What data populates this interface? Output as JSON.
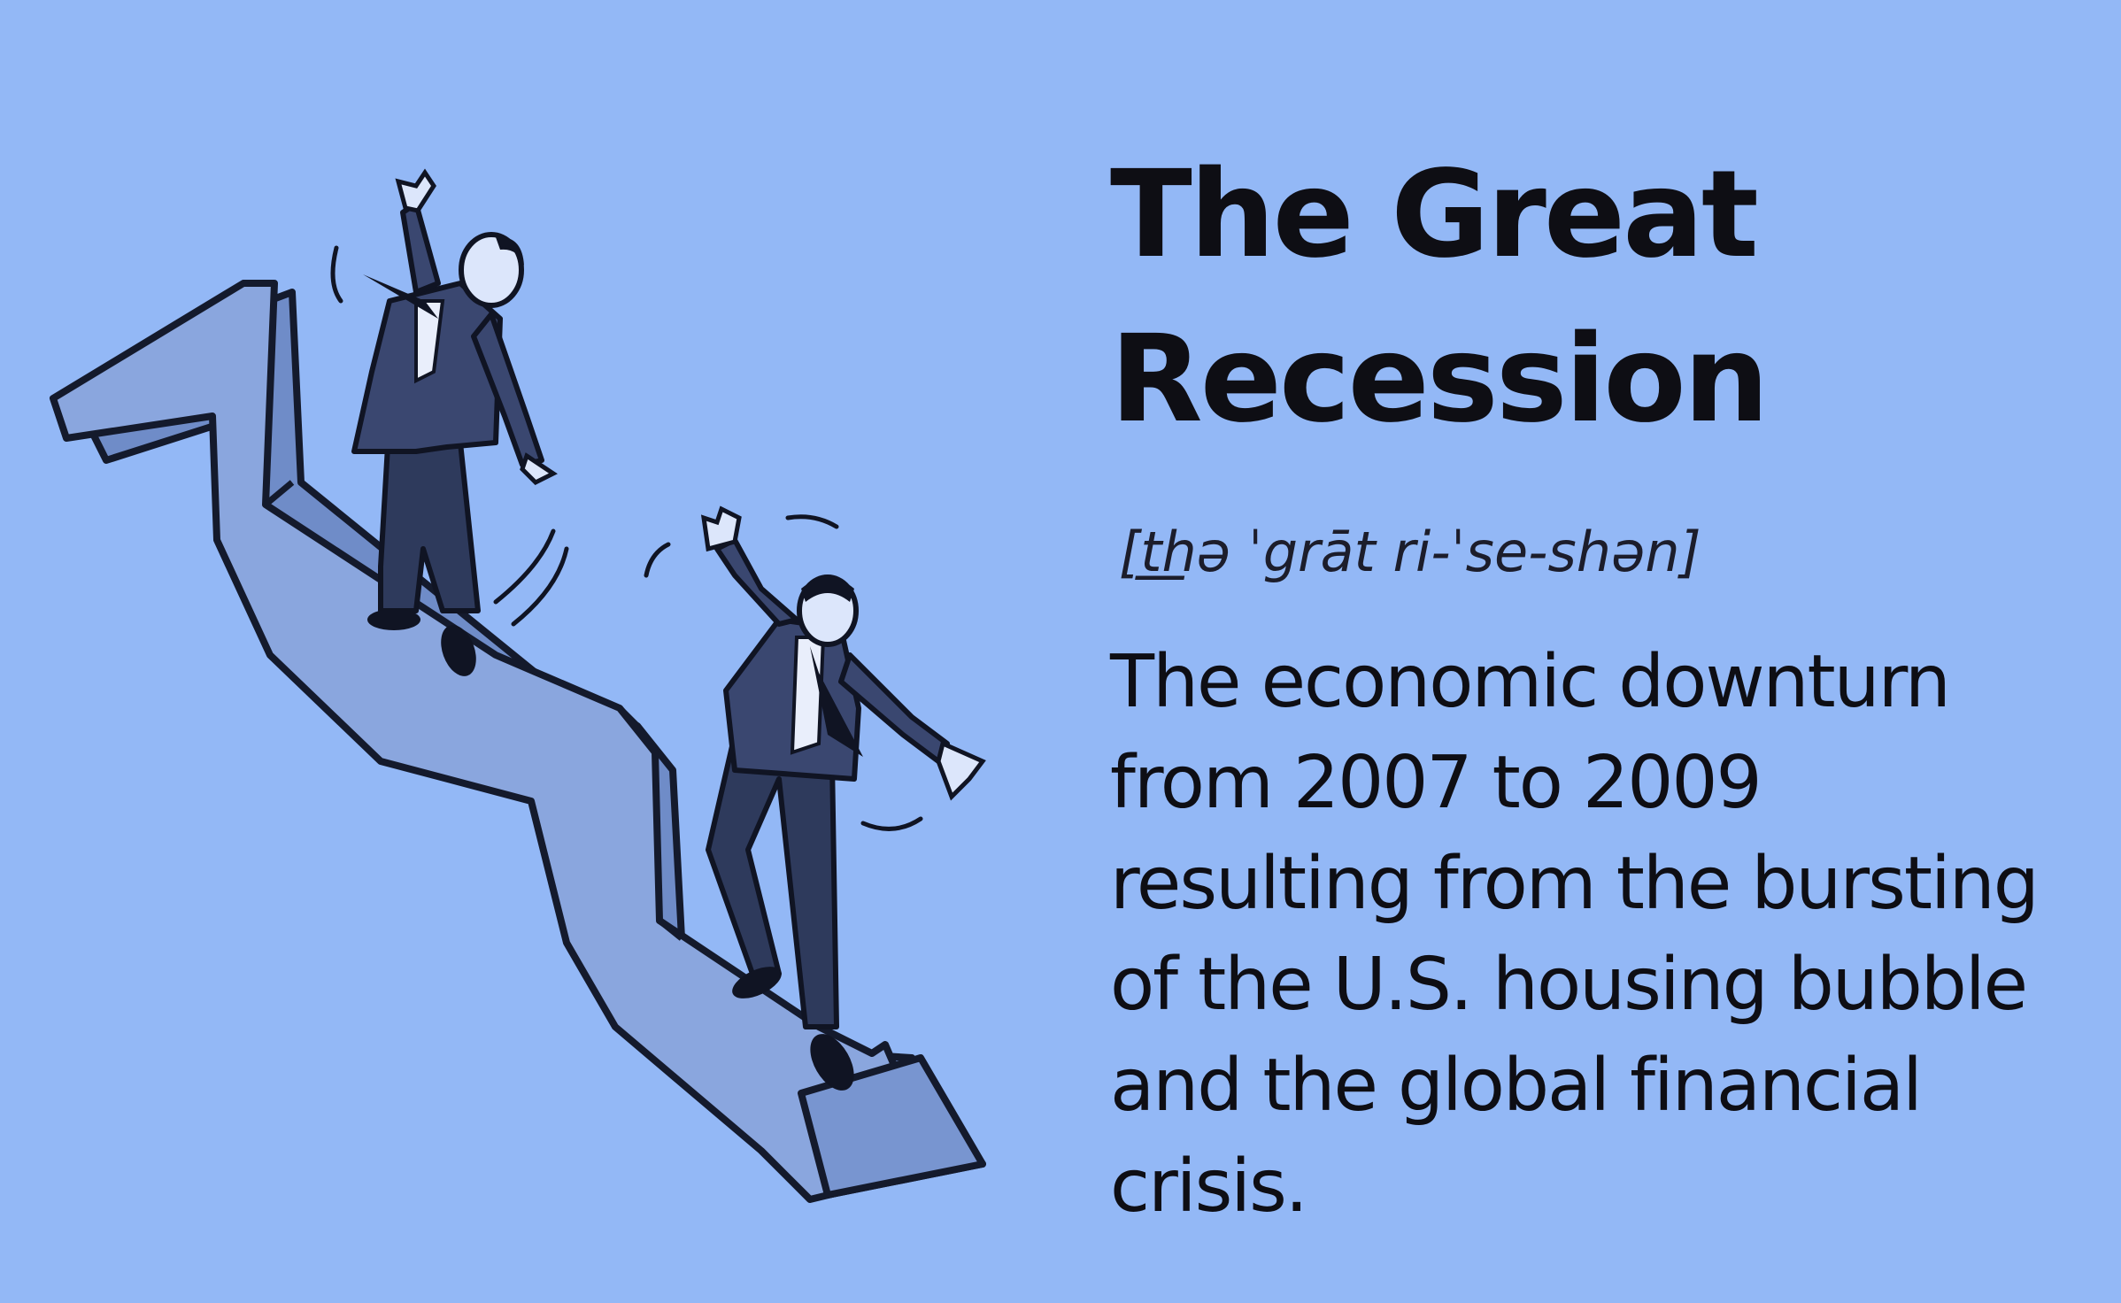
{
  "background_color": "#93b8f6",
  "title": {
    "line1": "The Great",
    "line2": "Recession"
  },
  "pronunciation": "[t͟hə ˈgrāt ri-ˈse-shən]",
  "definition": {
    "lines": [
      "The economic downturn",
      "from 2007 to 2009",
      "resulting from the bursting",
      "of the U.S. housing bubble",
      "and the global financial",
      "crisis."
    ]
  },
  "illustration": {
    "subject": "two businessmen sliding down a descending zigzag arrow",
    "arrow_color": "#6c88c4",
    "suit_color": "#2e3a5c"
  }
}
